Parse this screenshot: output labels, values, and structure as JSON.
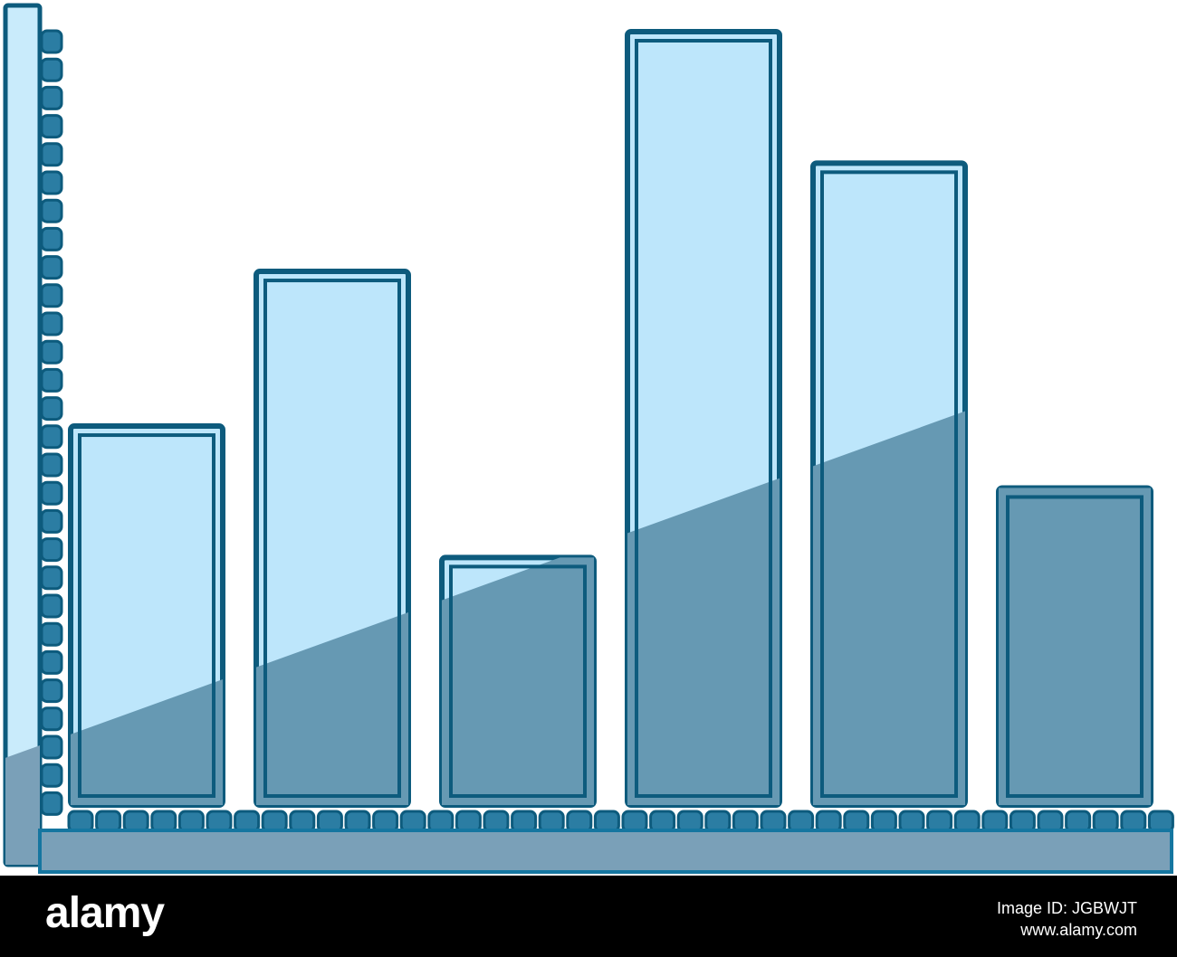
{
  "chart_data": {
    "type": "bar",
    "categories": [
      null,
      null,
      null,
      null,
      null,
      null
    ],
    "values": [
      49,
      69,
      32,
      100,
      83,
      41
    ],
    "ylim": [
      0,
      100
    ],
    "color": "#bde6fb",
    "shade_color": "#6699b3",
    "edge_color": "#0d5b7d"
  },
  "footer": {
    "logo": "alamy",
    "image_id": "Image ID: JGBWJT",
    "url": "www.alamy.com"
  }
}
